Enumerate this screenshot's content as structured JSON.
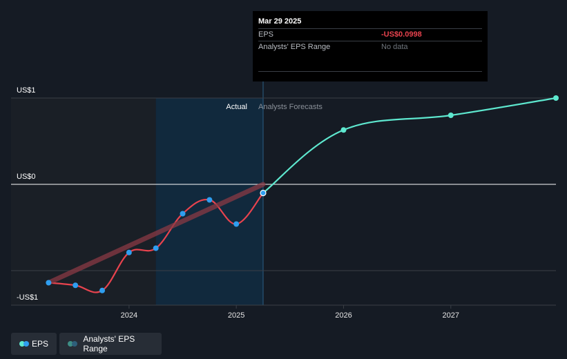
{
  "chart_data": {
    "type": "line",
    "y_axis_labels": [
      {
        "label": "US$1",
        "value": 1
      },
      {
        "label": "US$0",
        "value": 0
      },
      {
        "label": "-US$1",
        "value": -1
      }
    ],
    "x_tick_labels": [
      {
        "label": "2024",
        "x": 2024.0
      },
      {
        "label": "2025",
        "x": 2025.0
      },
      {
        "label": "2026",
        "x": 2026.0
      },
      {
        "label": "2027",
        "x": 2027.0
      }
    ],
    "ylim": [
      -1.4,
      1.2
    ],
    "xlim": [
      2022.9,
      2027.98
    ],
    "series": [
      {
        "name": "EPS",
        "kind": "actual",
        "color": "#e8434e",
        "marker_color": "#2f9ef0",
        "x": [
          2023.25,
          2023.5,
          2023.75,
          2024.0,
          2024.25,
          2024.5,
          2024.75,
          2025.0,
          2025.25
        ],
        "y": [
          -1.14,
          -1.17,
          -1.23,
          -0.79,
          -0.74,
          -0.34,
          -0.18,
          -0.46,
          -0.0998
        ]
      },
      {
        "name": "Analysts' EPS Range",
        "kind": "range",
        "color": "#8a3a44",
        "x": [
          2023.25,
          2025.25
        ],
        "y": [
          -1.14,
          0.0
        ]
      },
      {
        "name": "EPS",
        "kind": "forecast",
        "color": "#5ee8cf",
        "x": [
          2025.25,
          2026.0,
          2027.0,
          2027.98
        ],
        "y": [
          -0.0998,
          0.63,
          0.8,
          1.0
        ]
      }
    ],
    "section_labels": {
      "actual": "Actual",
      "forecast": "Analysts Forecasts"
    },
    "highlight_region": {
      "x_start": 2024.25,
      "x_end": 2025.25
    },
    "legend_placement": "bottom-left"
  },
  "tooltip": {
    "date": "Mar 29 2025",
    "rows": [
      {
        "key": "EPS",
        "value": "-US$0.0998"
      },
      {
        "key": "Analysts' EPS Range",
        "value": "No data"
      }
    ]
  },
  "legend": {
    "items": [
      {
        "label": "EPS",
        "dot_colors": [
          "#5ee8cf",
          "#2f9ef0"
        ]
      },
      {
        "label": "Analysts' EPS Range",
        "dot_colors": [
          "#3e8e85",
          "#2e5f7a"
        ]
      }
    ]
  },
  "colors": {
    "background": "#151b24",
    "past_shade": "#1a1f26",
    "highlight": "#11293d",
    "gridline": "#3a3f46",
    "zero_line": "#ffffff"
  }
}
